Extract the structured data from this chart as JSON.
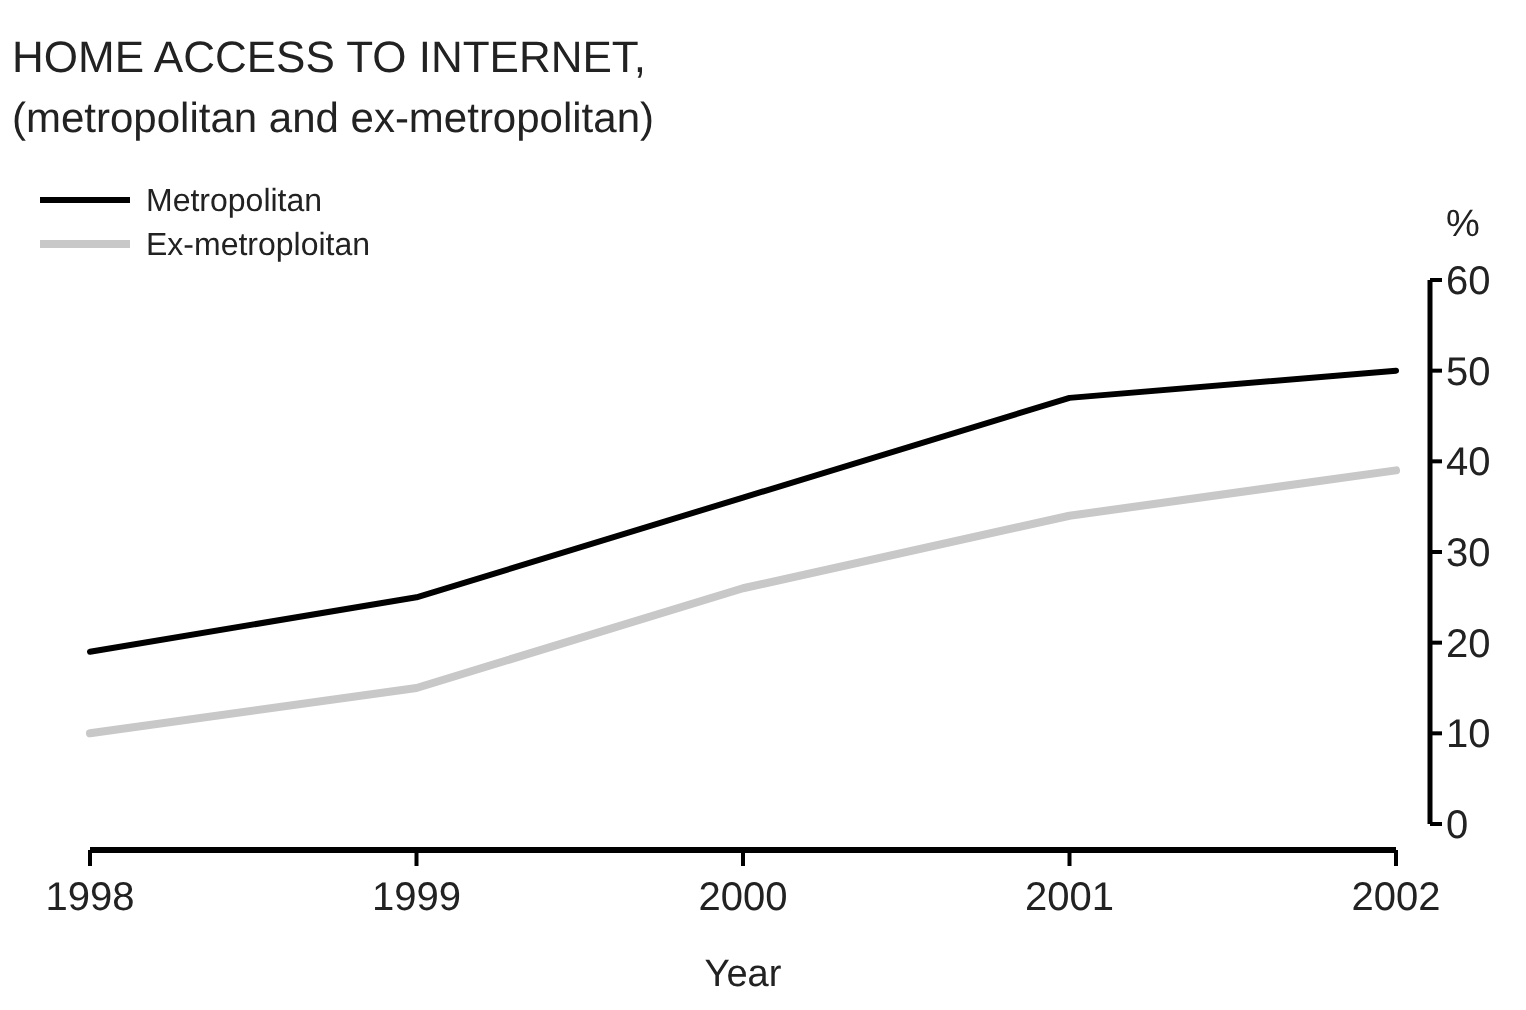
{
  "chart_data": {
    "type": "line",
    "title": "HOME ACCESS TO INTERNET,",
    "subtitle": "(metropolitan and ex-metropolitan)",
    "xlabel": "Year",
    "ylabel": "%",
    "x": [
      1998,
      1999,
      2000,
      2001,
      2002
    ],
    "xlim": [
      1998,
      2002
    ],
    "xticks": [
      1998,
      1999,
      2000,
      2001,
      2002
    ],
    "ylim": [
      0,
      60
    ],
    "yticks": [
      0,
      10,
      20,
      30,
      40,
      50,
      60
    ],
    "legend": "top left",
    "grid": false,
    "marker": "none",
    "line_style": "solid",
    "series": [
      {
        "name": "Metropolitan",
        "color": "#000000",
        "values": [
          19,
          25,
          36,
          47,
          50
        ]
      },
      {
        "name": "Ex-metroploitan",
        "color": "#c8c8c8",
        "values": [
          10,
          15,
          26,
          34,
          39
        ]
      }
    ]
  }
}
